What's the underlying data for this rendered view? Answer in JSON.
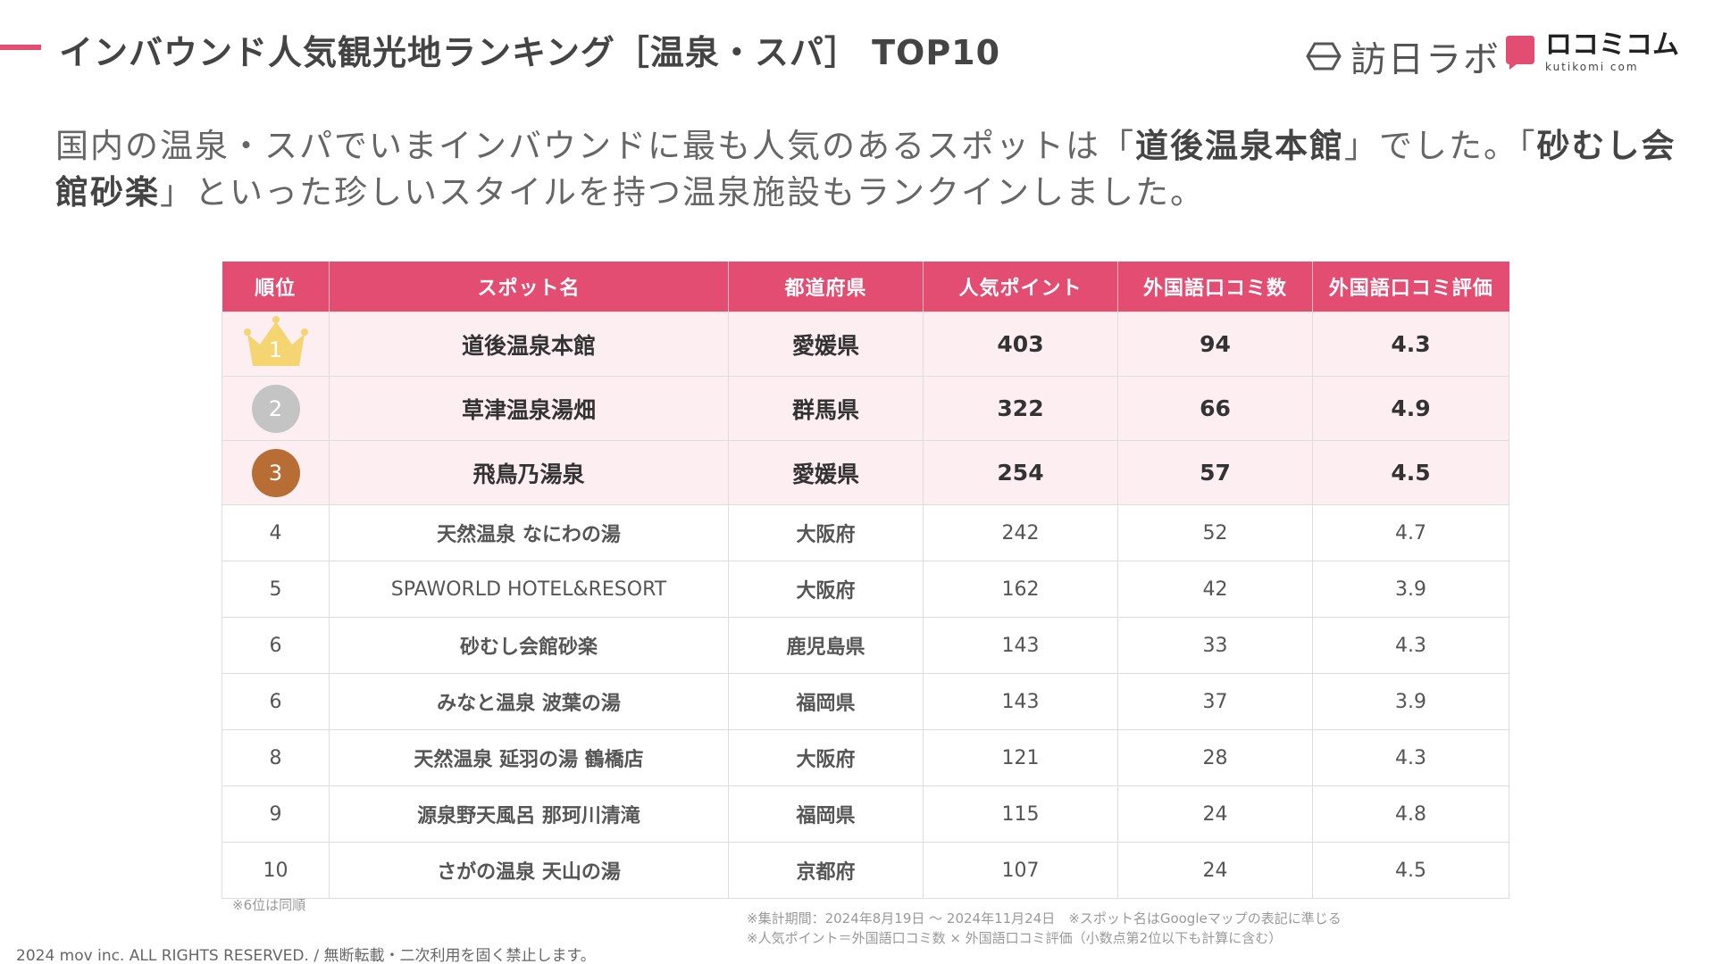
{
  "header": {
    "title": "インバウンド人気観光地ランキング［温泉・スパ］ TOP10",
    "logo_houbi_text": "訪日ラボ",
    "logo_kuchi_kana": "ロコミコム",
    "logo_kuchi_roman": "kutikomi com",
    "accent_color": "#e34d72"
  },
  "lead": {
    "part1": "国内の温泉・スパでいまインバウンドに最も人気のあるスポットは「",
    "bold1": "道後温泉本館",
    "part2": "」でした。「",
    "bold2": "砂むし会館砂楽",
    "part3": "」といった珍しいスタイルを持つ温泉施設もランクインしました。"
  },
  "table": {
    "headers": [
      "順位",
      "スポット名",
      "都道府県",
      "人気ポイント",
      "外国語口コミ数",
      "外国語口コミ評価"
    ],
    "rows": [
      {
        "rank": "1",
        "name": "道後温泉本館",
        "pref": "愛媛県",
        "points": "403",
        "reviews": "94",
        "rating": "4.3"
      },
      {
        "rank": "2",
        "name": "草津温泉湯畑",
        "pref": "群馬県",
        "points": "322",
        "reviews": "66",
        "rating": "4.9"
      },
      {
        "rank": "3",
        "name": "飛鳥乃湯泉",
        "pref": "愛媛県",
        "points": "254",
        "reviews": "57",
        "rating": "4.5"
      },
      {
        "rank": "4",
        "name": "天然温泉 なにわの湯",
        "pref": "大阪府",
        "points": "242",
        "reviews": "52",
        "rating": "4.7"
      },
      {
        "rank": "5",
        "name": "SPAWORLD HOTEL&RESORT",
        "pref": "大阪府",
        "points": "162",
        "reviews": "42",
        "rating": "3.9"
      },
      {
        "rank": "6",
        "name": "砂むし会館砂楽",
        "pref": "鹿児島県",
        "points": "143",
        "reviews": "33",
        "rating": "4.3"
      },
      {
        "rank": "6",
        "name": "みなと温泉 波葉の湯",
        "pref": "福岡県",
        "points": "143",
        "reviews": "37",
        "rating": "3.9"
      },
      {
        "rank": "8",
        "name": "天然温泉 延羽の湯 鶴橋店",
        "pref": "大阪府",
        "points": "121",
        "reviews": "28",
        "rating": "4.3"
      },
      {
        "rank": "9",
        "name": "源泉野天風呂 那珂川清滝",
        "pref": "福岡県",
        "points": "115",
        "reviews": "24",
        "rating": "4.8"
      },
      {
        "rank": "10",
        "name": "さがの温泉 天山の湯",
        "pref": "京都府",
        "points": "107",
        "reviews": "24",
        "rating": "4.5"
      }
    ]
  },
  "notes": {
    "tie": "※6位は同順",
    "period": "※集計期間：2024年8月19日 〜 2024年11月24日　※スポット名はGoogleマップの表記に準じる",
    "points": "※人気ポイント＝外国語口コミ数 × 外国語口コミ評価（小数点第2位以下も計算に含む）"
  },
  "footer": {
    "copyright": "2024 mov inc. ALL RIGHTS RESERVED. / 無断転載・二次利用を固く禁止します。"
  }
}
